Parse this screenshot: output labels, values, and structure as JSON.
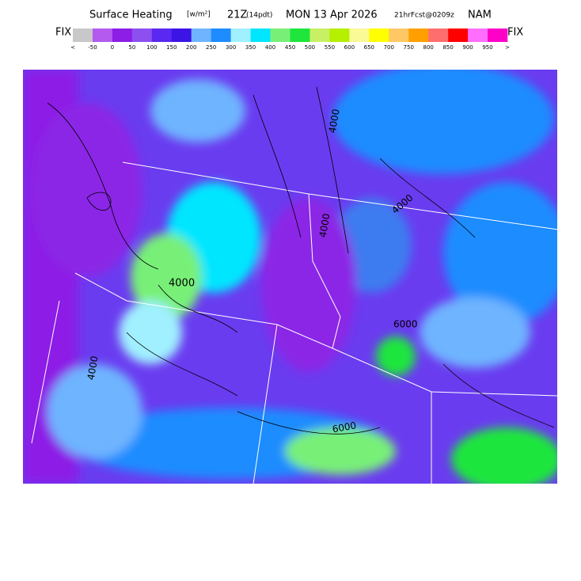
{
  "header": {
    "title": "Surface Heating",
    "units": "[w/m²]",
    "valid_time": "21Z",
    "local_time": "(14pdt)",
    "date": "MON 13 Apr 2026",
    "forecast": "21hrFcst@0209z",
    "model": "NAM"
  },
  "colorbar": {
    "left_label": "FIX",
    "right_label": "FIX",
    "colors": [
      "#c8c8c8",
      "#b45aee",
      "#8c1ee6",
      "#8c50f0",
      "#5a28f0",
      "#3c14e6",
      "#6eb4ff",
      "#1e8cff",
      "#a0f0ff",
      "#00e6ff",
      "#78f078",
      "#1ee63c",
      "#c8f064",
      "#b4f000",
      "#fafa96",
      "#ffff00",
      "#ffc864",
      "#ffa000",
      "#ff6e6e",
      "#ff0000",
      "#ff6eff",
      "#ff00c8"
    ],
    "labels": [
      "<",
      "-50",
      "0",
      "50",
      "100",
      "150",
      "200",
      "250",
      "300",
      "350",
      "400",
      "450",
      "500",
      "550",
      "600",
      "650",
      "700",
      "750",
      "800",
      "850",
      "900",
      "950",
      ">"
    ]
  },
  "map": {
    "contour_labels": [
      "4000",
      "4000",
      "4000",
      "4000",
      "6000",
      "6000",
      "4000"
    ]
  }
}
